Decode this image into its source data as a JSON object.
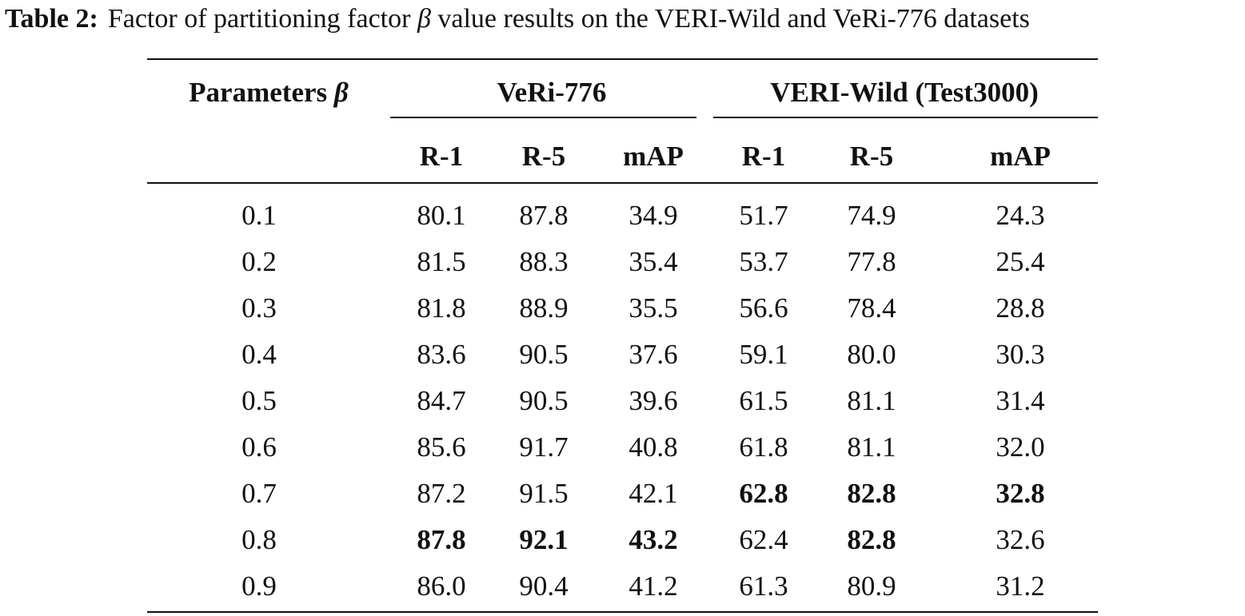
{
  "caption": {
    "label": "Table 2:",
    "text_before": "Factor of partitioning factor ",
    "symbol": "β",
    "text_after": " value results on the VERI-Wild and VeRi-776 datasets"
  },
  "header": {
    "param_label": "Parameters ",
    "param_symbol": "β",
    "group1": "VeRi-776",
    "group2": "VERI-Wild (Test3000)",
    "columns": [
      "R-1",
      "R-5",
      "mAP",
      "R-1",
      "R-5",
      "mAP"
    ]
  },
  "rows": [
    {
      "beta": "0.1",
      "values": [
        "80.1",
        "87.8",
        "34.9",
        "51.7",
        "74.9",
        "24.3"
      ],
      "bold": [
        false,
        false,
        false,
        false,
        false,
        false
      ]
    },
    {
      "beta": "0.2",
      "values": [
        "81.5",
        "88.3",
        "35.4",
        "53.7",
        "77.8",
        "25.4"
      ],
      "bold": [
        false,
        false,
        false,
        false,
        false,
        false
      ]
    },
    {
      "beta": "0.3",
      "values": [
        "81.8",
        "88.9",
        "35.5",
        "56.6",
        "78.4",
        "28.8"
      ],
      "bold": [
        false,
        false,
        false,
        false,
        false,
        false
      ]
    },
    {
      "beta": "0.4",
      "values": [
        "83.6",
        "90.5",
        "37.6",
        "59.1",
        "80.0",
        "30.3"
      ],
      "bold": [
        false,
        false,
        false,
        false,
        false,
        false
      ]
    },
    {
      "beta": "0.5",
      "values": [
        "84.7",
        "90.5",
        "39.6",
        "61.5",
        "81.1",
        "31.4"
      ],
      "bold": [
        false,
        false,
        false,
        false,
        false,
        false
      ]
    },
    {
      "beta": "0.6",
      "values": [
        "85.6",
        "91.7",
        "40.8",
        "61.8",
        "81.1",
        "32.0"
      ],
      "bold": [
        false,
        false,
        false,
        false,
        false,
        false
      ]
    },
    {
      "beta": "0.7",
      "values": [
        "87.2",
        "91.5",
        "42.1",
        "62.8",
        "82.8",
        "32.8"
      ],
      "bold": [
        false,
        false,
        false,
        true,
        true,
        true
      ]
    },
    {
      "beta": "0.8",
      "values": [
        "87.8",
        "92.1",
        "43.2",
        "62.4",
        "82.8",
        "32.6"
      ],
      "bold": [
        true,
        true,
        true,
        false,
        true,
        false
      ]
    },
    {
      "beta": "0.9",
      "values": [
        "86.0",
        "90.4",
        "41.2",
        "61.3",
        "80.9",
        "31.2"
      ],
      "bold": [
        false,
        false,
        false,
        false,
        false,
        false
      ]
    }
  ]
}
